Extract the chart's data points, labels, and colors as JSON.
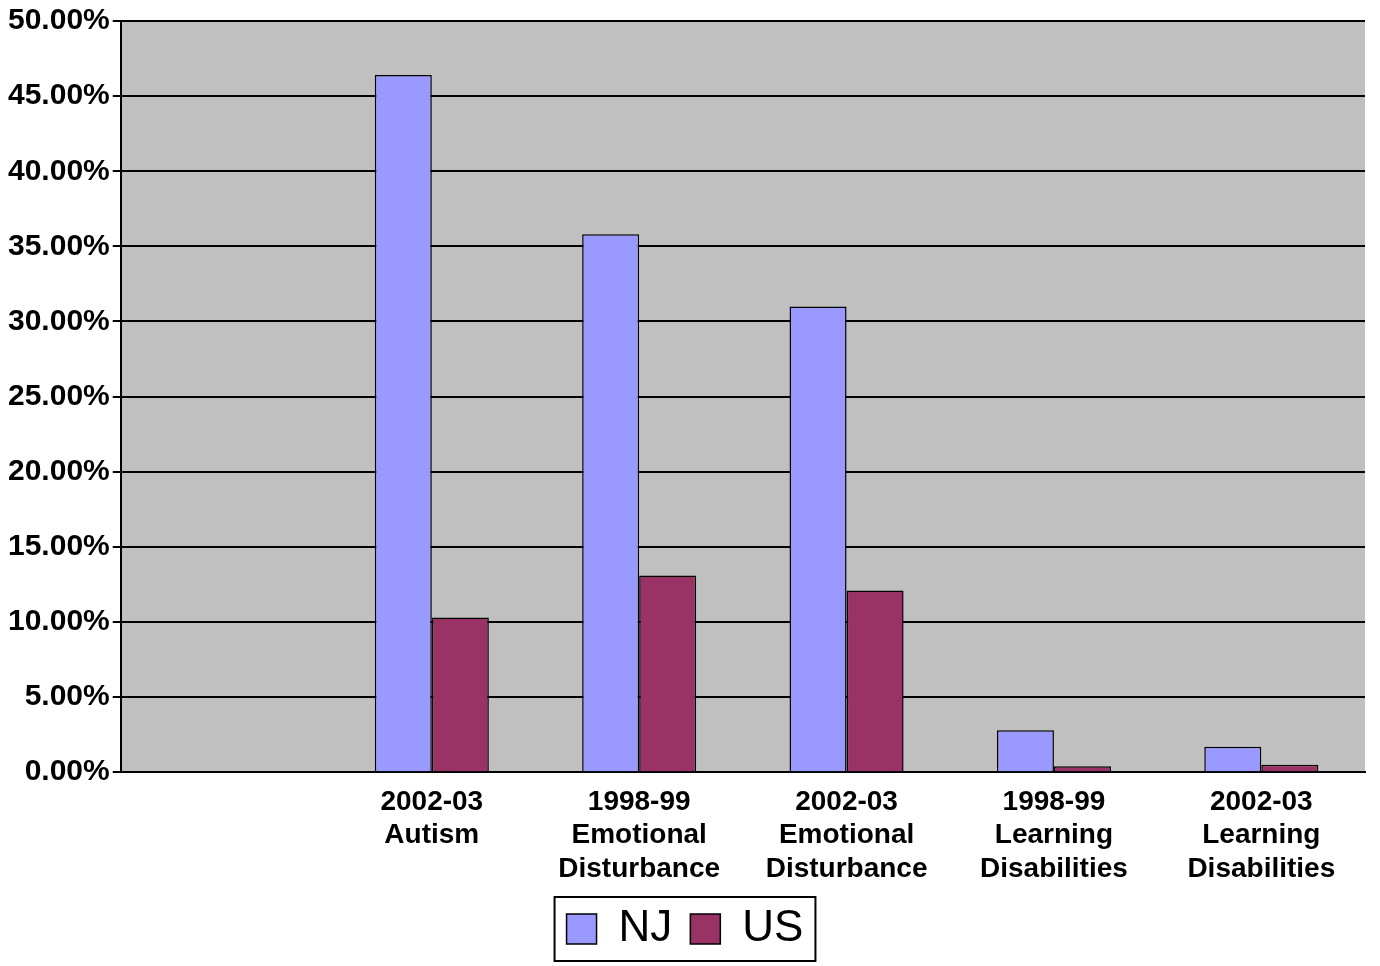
{
  "chart_data": {
    "type": "bar",
    "categories": [
      null,
      "2002-03 Autism",
      "1998-99 Emotional Disturbance",
      "2002-03 Emotional Disturbance",
      "1998-99 Learning Disabilities",
      "2002-03 Learning Disabilities"
    ],
    "series": [
      {
        "name": "NJ",
        "color": "#9999ff",
        "values": [
          null,
          46.4,
          35.8,
          31.0,
          2.8,
          1.7
        ]
      },
      {
        "name": "US",
        "color": "#993366",
        "values": [
          null,
          10.3,
          13.1,
          12.1,
          0.4,
          0.5
        ]
      }
    ],
    "ylim": [
      0,
      50
    ],
    "yticks": [
      {
        "value": 0,
        "label": "0.00%"
      },
      {
        "value": 5,
        "label": "5.00%"
      },
      {
        "value": 10,
        "label": "10.00%"
      },
      {
        "value": 15,
        "label": "15.00%"
      },
      {
        "value": 20,
        "label": "20.00%"
      },
      {
        "value": 25,
        "label": "25.00%"
      },
      {
        "value": 30,
        "label": "30.00%"
      },
      {
        "value": 35,
        "label": "35.00%"
      },
      {
        "value": 40,
        "label": "40.00%"
      },
      {
        "value": 45,
        "label": "45.00%"
      },
      {
        "value": 50,
        "label": "50.00%"
      }
    ],
    "grid": "y",
    "legend": "bottom"
  }
}
